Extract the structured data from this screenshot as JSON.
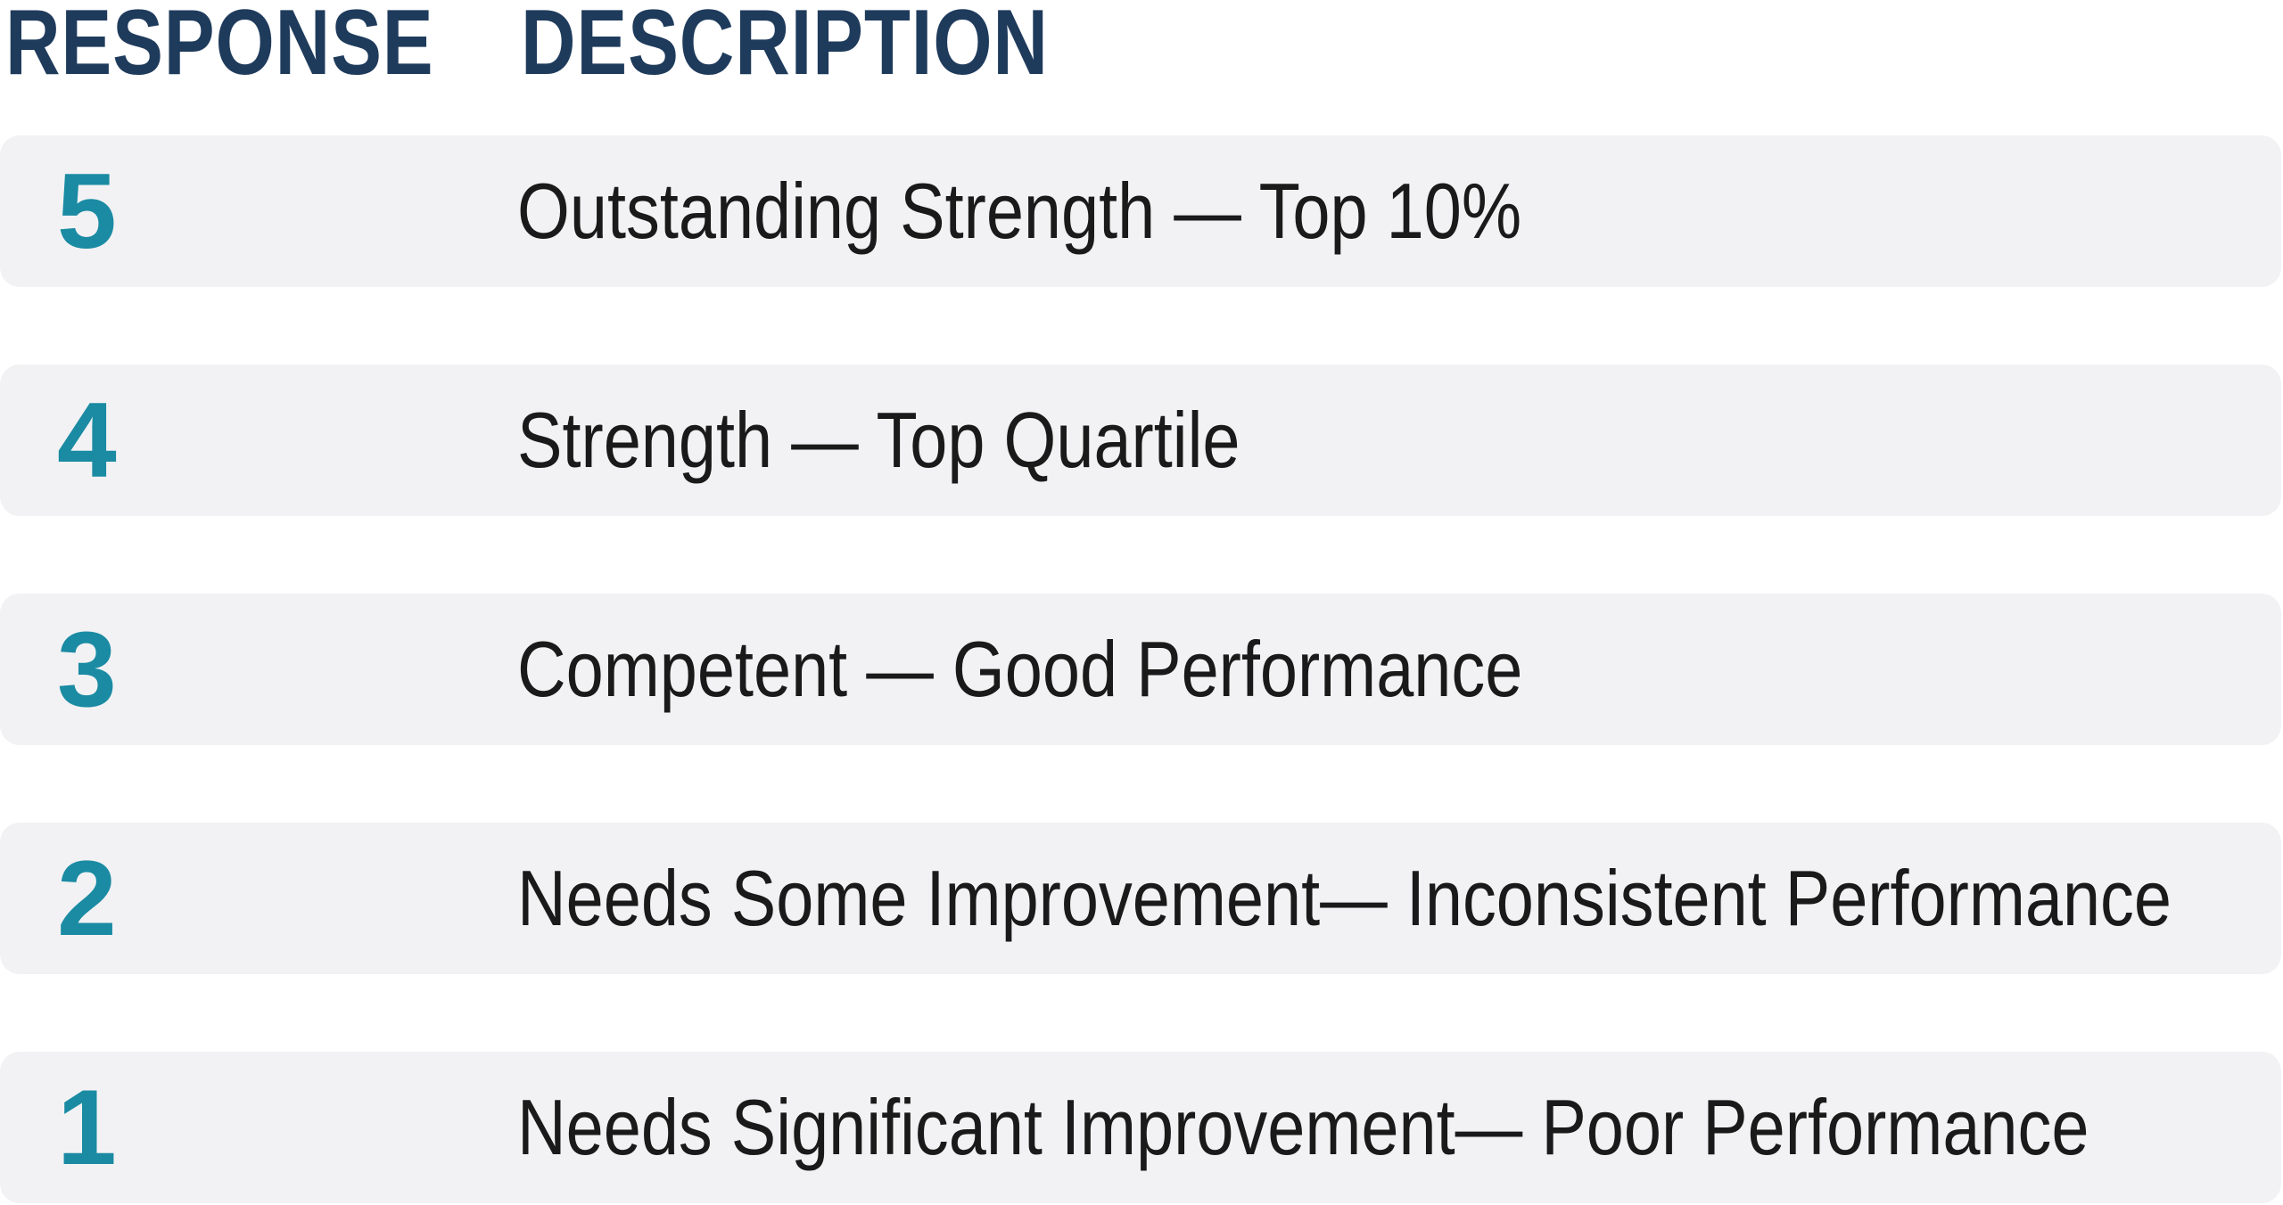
{
  "header": {
    "response_label": "RESPONSE",
    "description_label": "DESCRIPTION"
  },
  "colors": {
    "header_text": "#1f3b5c",
    "value_text": "#1a8ba3",
    "row_background": "#f2f2f4",
    "description_text": "#1a1a1a"
  },
  "rows": [
    {
      "value": "5",
      "description": "Outstanding Strength — Top 10%"
    },
    {
      "value": "4",
      "description": "Strength — Top Quartile"
    },
    {
      "value": "3",
      "description": "Competent — Good Performance"
    },
    {
      "value": "2",
      "description": "Needs Some Improvement— Inconsistent Performance"
    },
    {
      "value": "1",
      "description": "Needs Significant Improvement— Poor Performance"
    }
  ]
}
